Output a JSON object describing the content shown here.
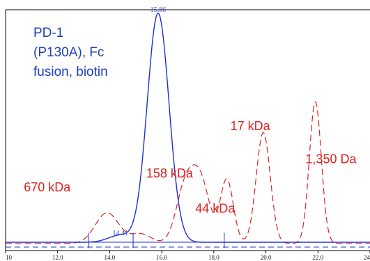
{
  "chart_data": {
    "type": "line",
    "title_lines": [
      "PD-1",
      "(P130A), Fc",
      "fusion, biotin"
    ],
    "xlabel": "",
    "ylabel": "",
    "xlim": [
      10,
      24
    ],
    "ylim": [
      -0.2,
      10
    ],
    "x_ticks": [
      {
        "value": 10,
        "label": "10"
      },
      {
        "value": 12,
        "label": "12.0"
      },
      {
        "value": 14,
        "label": "14.0"
      },
      {
        "value": 16,
        "label": "16.0"
      },
      {
        "value": 18,
        "label": "18.0"
      },
      {
        "value": 20,
        "label": "20.0"
      },
      {
        "value": 22,
        "label": "22.0"
      },
      {
        "value": 24,
        "label": "24"
      }
    ],
    "series": [
      {
        "role": "sample",
        "color": "#1a2fd6",
        "dash": "solid",
        "baseline": 0.15,
        "peaks": [
          {
            "x": 14.4,
            "h": 0.3,
            "w": 0.45
          },
          {
            "x": 15.86,
            "h": 9.7,
            "w": 0.42
          }
        ]
      },
      {
        "role": "standard",
        "color": "#e02020",
        "dash": "dashed",
        "baseline": 0.1,
        "peaks": [
          {
            "x": 13.9,
            "h": 1.3,
            "w": 0.45
          },
          {
            "x": 15.2,
            "h": 0.4,
            "w": 0.4
          },
          {
            "x": 16.9,
            "h": 2.3,
            "w": 0.35
          },
          {
            "x": 17.5,
            "h": 2.5,
            "w": 0.35
          },
          {
            "x": 18.5,
            "h": 2.7,
            "w": 0.25
          },
          {
            "x": 19.9,
            "h": 4.7,
            "w": 0.27
          },
          {
            "x": 21.9,
            "h": 6.0,
            "w": 0.23
          }
        ]
      }
    ],
    "peak_labels": [
      {
        "x": 15.86,
        "label": "15.86"
      },
      {
        "x": 14.41,
        "label": "14.41"
      }
    ],
    "annotations": [
      {
        "x": 11.6,
        "y": 2.3,
        "label": "670 kDa"
      },
      {
        "x": 16.3,
        "y": 2.9,
        "label": "158 kDa"
      },
      {
        "x": 18.05,
        "y": 1.4,
        "label": "44 kDa"
      },
      {
        "x": 19.4,
        "y": 4.9,
        "label": "17 kDa"
      },
      {
        "x": 22.5,
        "y": 3.5,
        "label": "1,350 Da"
      }
    ]
  }
}
